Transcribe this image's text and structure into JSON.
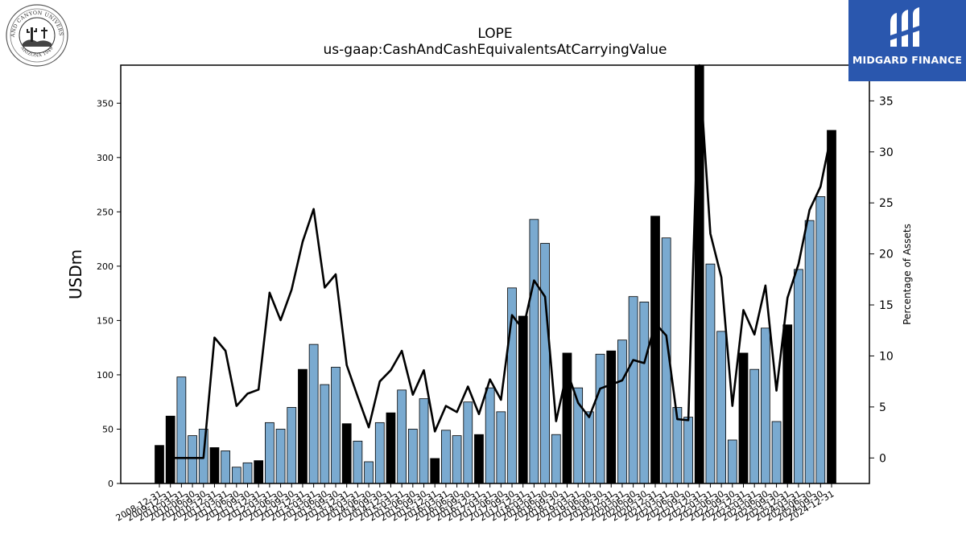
{
  "header": {
    "logo_left_text_top": "GRAND CANYON UNIVERSITY",
    "logo_left_text_bottom": "ARIZONA 1949",
    "logo_right_text": "MIDGARD FINANCE"
  },
  "chart_data": {
    "type": "bar",
    "title": "LOPE",
    "subtitle": "us-gaap:CashAndCashEquivalentsAtCarryingValue",
    "ylabel": "USDm",
    "y2label": "Percentage of Assets",
    "ylim": [
      0,
      385
    ],
    "y2lim": [
      -2.5,
      38.5
    ],
    "yticks": [
      0,
      50,
      100,
      150,
      200,
      250,
      300,
      350
    ],
    "y2ticks": [
      0,
      5,
      10,
      15,
      20,
      25,
      30,
      35
    ],
    "grid": false,
    "colors": {
      "annual": "#000000",
      "quarter": "#7aaad0",
      "line": "#000000"
    },
    "categories": [
      "2008-12-31",
      "2009-12-31",
      "2010-03-31",
      "2010-06-30",
      "2010-09-30",
      "2010-12-31",
      "2011-03-31",
      "2011-06-30",
      "2011-09-30",
      "2011-12-31",
      "2012-03-31",
      "2012-06-30",
      "2012-09-30",
      "2012-12-31",
      "2013-03-31",
      "2013-06-30",
      "2013-09-30",
      "2013-12-31",
      "2014-03-31",
      "2014-06-30",
      "2014-09-30",
      "2014-12-31",
      "2015-03-31",
      "2015-06-30",
      "2015-09-30",
      "2015-12-31",
      "2016-03-31",
      "2016-06-30",
      "2016-09-30",
      "2016-12-31",
      "2017-03-31",
      "2017-06-30",
      "2017-09-30",
      "2017-12-31",
      "2018-03-31",
      "2018-06-30",
      "2018-09-30",
      "2018-12-31",
      "2019-03-31",
      "2019-06-30",
      "2019-09-30",
      "2019-12-31",
      "2020-03-31",
      "2020-06-30",
      "2020-09-30",
      "2020-12-31",
      "2021-03-31",
      "2021-06-30",
      "2021-09-30",
      "2021-12-31",
      "2022-03-31",
      "2022-06-30",
      "2022-09-30",
      "2022-12-31",
      "2023-03-31",
      "2023-06-30",
      "2023-09-30",
      "2023-12-31",
      "2024-03-31",
      "2024-06-30",
      "2024-09-30",
      "2024-12-31"
    ],
    "series": [
      {
        "kind": "bar",
        "values": [
          35,
          62,
          98,
          44,
          50,
          33,
          30,
          15,
          19,
          21,
          56,
          50,
          70,
          105,
          128,
          91,
          107,
          55,
          39,
          20,
          56,
          65,
          86,
          50,
          78,
          23,
          49,
          44,
          75,
          45,
          88,
          66,
          180,
          154,
          243,
          221,
          45,
          120,
          88,
          66,
          119,
          122,
          132,
          172,
          167,
          246,
          226,
          70,
          61,
          385,
          202,
          140,
          40,
          120,
          105,
          143,
          57,
          146,
          197,
          242,
          264,
          325
        ],
        "annual": [
          true,
          true,
          false,
          false,
          false,
          true,
          false,
          false,
          false,
          true,
          false,
          false,
          false,
          true,
          false,
          false,
          false,
          true,
          false,
          false,
          false,
          true,
          false,
          false,
          false,
          true,
          false,
          false,
          false,
          true,
          false,
          false,
          false,
          true,
          false,
          false,
          false,
          true,
          false,
          false,
          false,
          true,
          false,
          false,
          false,
          true,
          false,
          false,
          false,
          true,
          false,
          false,
          false,
          true,
          false,
          false,
          false,
          true,
          false,
          false,
          false,
          true
        ]
      },
      {
        "kind": "line",
        "axis": "right",
        "values": [
          null,
          0,
          0,
          0,
          0,
          11.8,
          10.5,
          5.1,
          6.3,
          6.7,
          16.2,
          13.5,
          16.5,
          21.2,
          24.4,
          16.7,
          18.0,
          9.1,
          6.0,
          3.0,
          7.5,
          8.6,
          10.5,
          6.2,
          8.6,
          2.6,
          5.1,
          4.5,
          7.0,
          4.3,
          7.7,
          5.7,
          14.0,
          12.6,
          17.4,
          15.8,
          3.6,
          8.5,
          5.4,
          4.0,
          6.8,
          7.2,
          7.6,
          9.6,
          9.3,
          13.2,
          12.0,
          3.8,
          3.7,
          38.5,
          22.0,
          17.7,
          5.1,
          14.5,
          12.1,
          16.9,
          6.6,
          15.7,
          19.0,
          24.3,
          26.6,
          31.9
        ]
      }
    ]
  }
}
